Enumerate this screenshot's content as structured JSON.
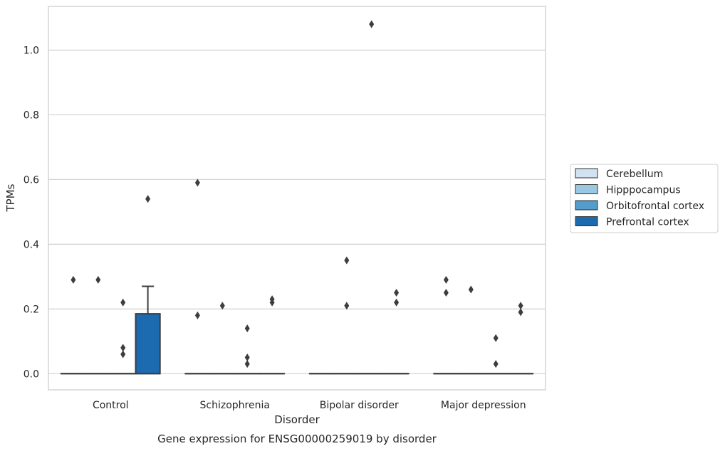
{
  "chart_data": {
    "type": "box",
    "xlabel": "Disorder",
    "ylabel": "TPMs",
    "caption": "Gene expression for ENSG00000259019 by disorder",
    "ylim": [
      -0.05,
      1.135
    ],
    "yticks": [
      0.0,
      0.2,
      0.4,
      0.6,
      0.8,
      1.0
    ],
    "ytick_labels": [
      "0.0",
      "0.2",
      "0.4",
      "0.6",
      "0.8",
      "1.0"
    ],
    "grid": "horizontal",
    "legend_position": "right",
    "categories": [
      "Control",
      "Schizophrenia",
      "Bipolar disorder",
      "Major depression"
    ],
    "series": [
      {
        "name": "Cerebellum",
        "color": "#d1e2f2",
        "boxes": [
          {
            "q1": 0,
            "median": 0,
            "q3": 0,
            "whislo": 0,
            "whishi": 0,
            "fliers": [
              0.29
            ]
          },
          {
            "q1": 0,
            "median": 0,
            "q3": 0,
            "whislo": 0,
            "whishi": 0,
            "fliers": [
              0.59,
              0.18
            ]
          },
          {
            "q1": 0,
            "median": 0,
            "q3": 0,
            "whislo": 0,
            "whishi": 0,
            "fliers": []
          },
          {
            "q1": 0,
            "median": 0,
            "q3": 0,
            "whislo": 0,
            "whishi": 0,
            "fliers": [
              0.29,
              0.25
            ]
          }
        ]
      },
      {
        "name": "Hipppocampus",
        "color": "#9ac8e0",
        "boxes": [
          {
            "q1": 0,
            "median": 0,
            "q3": 0,
            "whislo": 0,
            "whishi": 0,
            "fliers": [
              0.29
            ]
          },
          {
            "q1": 0,
            "median": 0,
            "q3": 0,
            "whislo": 0,
            "whishi": 0,
            "fliers": [
              0.21
            ]
          },
          {
            "q1": 0,
            "median": 0,
            "q3": 0,
            "whislo": 0,
            "whishi": 0,
            "fliers": [
              0.35,
              0.21
            ]
          },
          {
            "q1": 0,
            "median": 0,
            "q3": 0,
            "whislo": 0,
            "whishi": 0,
            "fliers": [
              0.26
            ]
          }
        ]
      },
      {
        "name": "Orbitofrontal cortex",
        "color": "#529dcc",
        "boxes": [
          {
            "q1": 0,
            "median": 0,
            "q3": 0,
            "whislo": 0,
            "whishi": 0,
            "fliers": [
              0.22,
              0.08,
              0.06
            ]
          },
          {
            "q1": 0,
            "median": 0,
            "q3": 0,
            "whislo": 0,
            "whishi": 0,
            "fliers": [
              0.14,
              0.05,
              0.03
            ]
          },
          {
            "q1": 0,
            "median": 0,
            "q3": 0,
            "whislo": 0,
            "whishi": 0,
            "fliers": [
              1.08
            ]
          },
          {
            "q1": 0,
            "median": 0,
            "q3": 0,
            "whislo": 0,
            "whishi": 0,
            "fliers": [
              0.11,
              0.03
            ]
          }
        ]
      },
      {
        "name": "Prefrontal cortex",
        "color": "#1c6aaf",
        "boxes": [
          {
            "q1": 0,
            "median": 0,
            "q3": 0.185,
            "whislo": 0,
            "whishi": 0.27,
            "fliers": [
              0.54
            ]
          },
          {
            "q1": 0,
            "median": 0,
            "q3": 0,
            "whislo": 0,
            "whishi": 0,
            "fliers": [
              0.23,
              0.22
            ]
          },
          {
            "q1": 0,
            "median": 0,
            "q3": 0,
            "whislo": 0,
            "whishi": 0,
            "fliers": [
              0.25,
              0.22
            ]
          },
          {
            "q1": 0,
            "median": 0,
            "q3": 0,
            "whislo": 0,
            "whishi": 0,
            "fliers": [
              0.21,
              0.19
            ]
          }
        ]
      }
    ]
  }
}
